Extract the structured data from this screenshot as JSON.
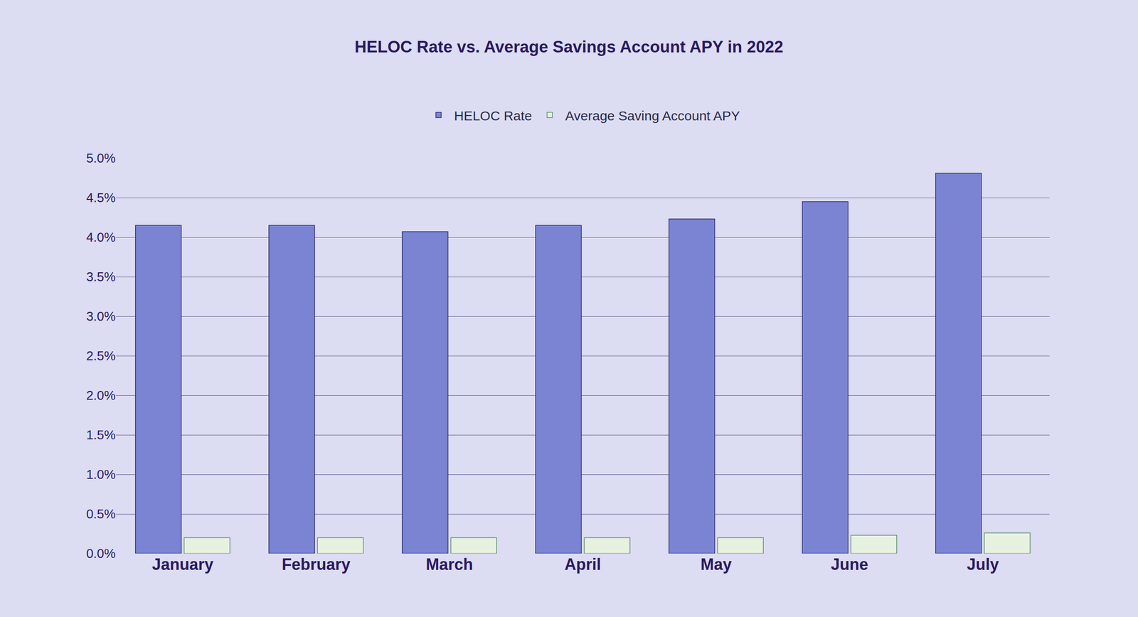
{
  "chart_data": {
    "type": "bar",
    "title": "HELOC Rate vs. Average Savings Account APY in 2022",
    "categories": [
      "January",
      "February",
      "March",
      "April",
      "May",
      "June",
      "July"
    ],
    "series": [
      {
        "name": "HELOC Rate",
        "color": "#7b84d3",
        "values": [
          4.15,
          4.15,
          4.07,
          4.15,
          4.23,
          4.45,
          4.81
        ]
      },
      {
        "name": "Average Saving Account APY",
        "color": "#e6f2df",
        "values": [
          0.2,
          0.2,
          0.2,
          0.2,
          0.2,
          0.23,
          0.26
        ]
      }
    ],
    "ylim": [
      0,
      5
    ],
    "yticks": [
      {
        "value": 0,
        "label": "0.0%"
      },
      {
        "value": 0.5,
        "label": "0.5%"
      },
      {
        "value": 1,
        "label": "1.0%"
      },
      {
        "value": 1.5,
        "label": "1.5%"
      },
      {
        "value": 2,
        "label": "2.0%"
      },
      {
        "value": 2.5,
        "label": "2.5%"
      },
      {
        "value": 3,
        "label": "3.0%"
      },
      {
        "value": 3.5,
        "label": "3.5%"
      },
      {
        "value": 4,
        "label": "4.0%"
      },
      {
        "value": 4.5,
        "label": "4.5%"
      },
      {
        "value": 5,
        "label": "5.0%"
      }
    ],
    "grid": true,
    "legend": "top"
  }
}
